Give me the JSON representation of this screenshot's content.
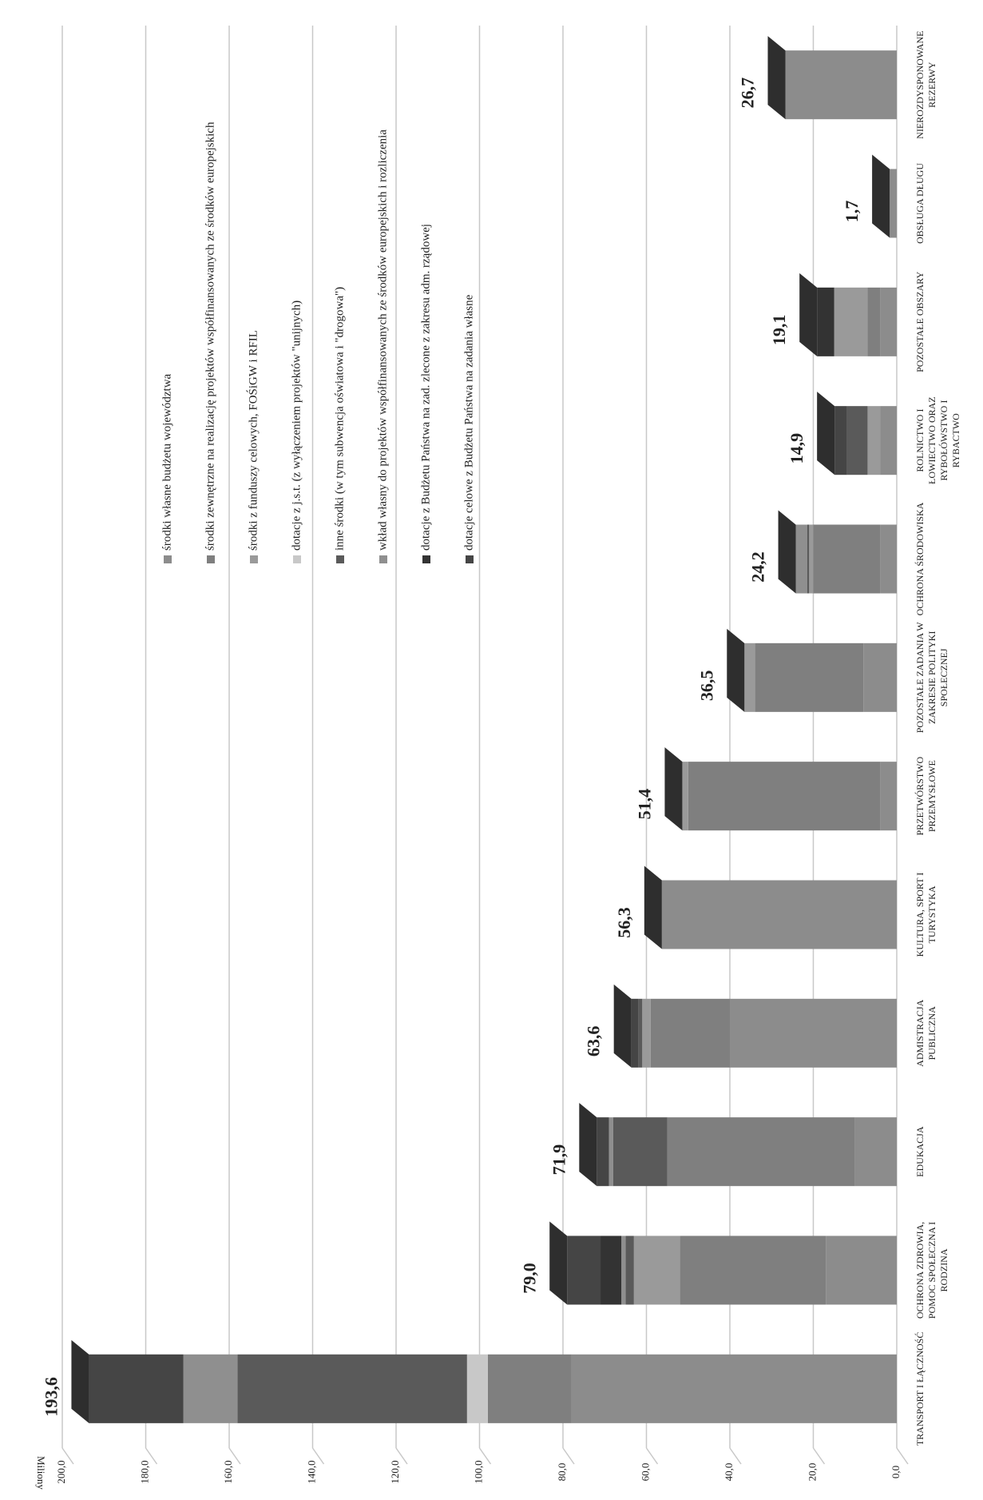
{
  "chart_data": {
    "type": "bar",
    "stacked": true,
    "y_label": "Miliony",
    "categories": [
      "TRANSPORT I ŁĄCZNOŚĆ",
      "OCHRONA ZDROWIA, POMOC SPOŁECZNA I RODZINA",
      "EDUKACJA",
      "ADMISTRACJA PUBLICZNA",
      "KULTURA, SPORT I TURYSTYKA",
      "PRZETWÓRSTWO PRZEMYSŁOWE",
      "POZOSTAŁE ZADANIA W ZAKRESIE POLITYKI SPOŁECZNEJ",
      "OCHRONA ŚRODOWISKA",
      "ROLNICTWO I ŁOWIECTWO ORAZ RYBOŁÓWSTWO I RYBACTWO",
      "POZOSTAŁE OBSZARY",
      "OBSŁUGA DŁUGU",
      "NIEROZDYSPONOWANE REZERWY"
    ],
    "series": [
      {
        "name": "środki własne budżetu województwa",
        "color": "#8c8c8c",
        "values": [
          78.0,
          17.0,
          10.0,
          40.0,
          56.3,
          4.0,
          8.0,
          4.0,
          4.0,
          4.0,
          1.7,
          26.7
        ]
      },
      {
        "name": "środki zewnętrzne na realizację projektów  współfinansowanych ze środków europejskich",
        "color": "#7f7f7f",
        "values": [
          20.0,
          35.0,
          45.0,
          19.0,
          0,
          46.0,
          26.0,
          16.0,
          0,
          3.0,
          0,
          0
        ]
      },
      {
        "name": "środki z funduszy celowych, FOŚiGW i RFIL",
        "color": "#9a9a9a",
        "values": [
          0,
          11.0,
          0,
          2.0,
          0,
          1.4,
          2.5,
          1.0,
          3.0,
          8.0,
          0,
          0
        ]
      },
      {
        "name": "dotacje z j.s.t. (z wyłączeniem projektów \"unijnych)",
        "color": "#c8c8c8",
        "values": [
          5.0,
          0,
          0,
          0,
          0,
          0,
          0,
          0,
          0,
          0,
          0,
          0
        ]
      },
      {
        "name": "inne środki (w tym subwencja oświatowa i \"drogowa\")",
        "color": "#5a5a5a",
        "values": [
          55.0,
          2.0,
          13.0,
          1.0,
          0,
          0,
          0,
          0.5,
          4.9,
          0,
          0,
          0
        ]
      },
      {
        "name": "wkład własny do projektów współfinansowanych ze środków europejskich i rozliczenia",
        "color": "#8f8f8f",
        "values": [
          13.0,
          1.0,
          1.0,
          0,
          0,
          0,
          0,
          2.7,
          0,
          0,
          0,
          0
        ]
      },
      {
        "name": "dotacje z Budżetu Państwa na zad. zlecone z zakresu adm. rządowej",
        "color": "#333333",
        "values": [
          0,
          5.0,
          0,
          0,
          0,
          0,
          0,
          0,
          0,
          4.1,
          0,
          0
        ]
      },
      {
        "name": "dotacje celowe z Budżetu Państwa na zadania własne",
        "color": "#454545",
        "values": [
          22.6,
          8.0,
          2.9,
          1.6,
          0,
          0,
          0,
          0,
          3.0,
          0,
          0,
          0
        ]
      }
    ],
    "totals": [
      193.6,
      79.0,
      71.9,
      63.6,
      56.3,
      51.4,
      36.5,
      24.2,
      14.9,
      19.1,
      1.7,
      26.7
    ],
    "total_labels": [
      "193,6",
      "79,0",
      "71,9",
      "63,6",
      "56,3",
      "51,4",
      "36,5",
      "24,2",
      "14,9",
      "19,1",
      "1,7",
      "26,7"
    ],
    "ylim": [
      0,
      200
    ],
    "yticks": [
      {
        "value": 0,
        "label": "0,0"
      },
      {
        "value": 20,
        "label": "20,0"
      },
      {
        "value": 40,
        "label": "40,0"
      },
      {
        "value": 60,
        "label": "60,0"
      },
      {
        "value": 80,
        "label": "80,0"
      },
      {
        "value": 100,
        "label": "100,0"
      },
      {
        "value": 120,
        "label": "120,0"
      },
      {
        "value": 140,
        "label": "140,0"
      },
      {
        "value": 160,
        "label": "160,0"
      },
      {
        "value": 180,
        "label": "180,0"
      },
      {
        "value": 200,
        "label": "200,0"
      }
    ],
    "grid": true
  }
}
